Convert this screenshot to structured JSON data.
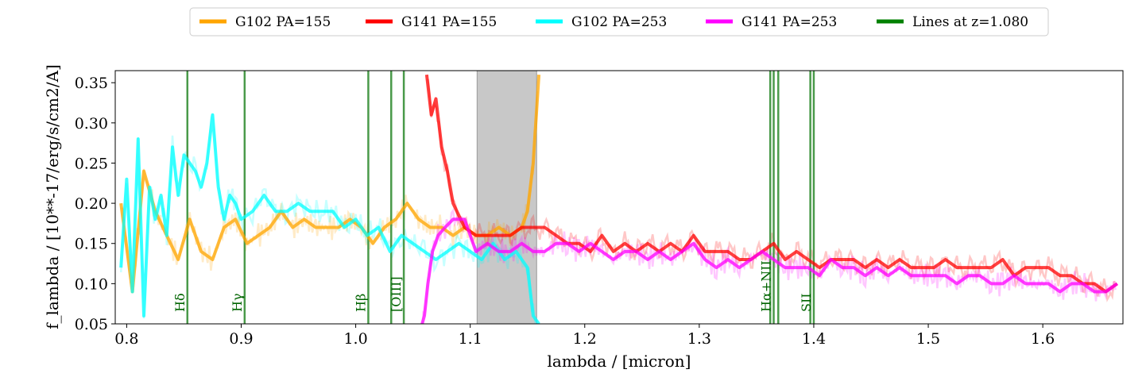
{
  "chart_data": {
    "type": "line",
    "xlabel": "lambda / [micron]",
    "ylabel": "f_lambda / [10**-17/erg/s/cm2/A]",
    "xlim": [
      0.79,
      1.67
    ],
    "ylim": [
      0.05,
      0.365
    ],
    "x_ticks": [
      0.8,
      0.9,
      1.0,
      1.1,
      1.2,
      1.3,
      1.4,
      1.5,
      1.6
    ],
    "x_tick_labels": [
      "0.8",
      "0.9",
      "1.0",
      "1.1",
      "1.2",
      "1.3",
      "1.4",
      "1.5",
      "1.6"
    ],
    "y_ticks": [
      0.05,
      0.1,
      0.15,
      0.2,
      0.25,
      0.3,
      0.35
    ],
    "y_tick_labels": [
      "0.05",
      "0.10",
      "0.15",
      "0.20",
      "0.25",
      "0.30",
      "0.35"
    ],
    "legend_position": "top-center",
    "masked_region": [
      1.106,
      1.158
    ],
    "masked_color": "#c8c8c8",
    "legend": [
      {
        "name": "G102 PA=155",
        "color": "#ffa500"
      },
      {
        "name": "G141 PA=155",
        "color": "#ff0000"
      },
      {
        "name": "G102 PA=253",
        "color": "#00ffff"
      },
      {
        "name": "G141 PA=253",
        "color": "#ff00ff"
      },
      {
        "name": "Lines at z=1.080",
        "color": "#008000"
      }
    ],
    "emission_lines": [
      {
        "x": 0.853,
        "label": "Hδ"
      },
      {
        "x": 0.903,
        "label": "Hγ"
      },
      {
        "x": 1.011,
        "label": "Hβ"
      },
      {
        "x": 1.031,
        "label": ""
      },
      {
        "x": 1.042,
        "label": "[OIII]"
      },
      {
        "x": 1.362,
        "label": ""
      },
      {
        "x": 1.365,
        "label": "Hα+NII"
      },
      {
        "x": 1.369,
        "label": ""
      },
      {
        "x": 1.397,
        "label": ""
      },
      {
        "x": 1.4,
        "label": "SII"
      }
    ],
    "series": [
      {
        "name": "G102 PA=155",
        "color": "#ffa500",
        "x": [
          0.795,
          0.805,
          0.815,
          0.825,
          0.835,
          0.845,
          0.855,
          0.865,
          0.875,
          0.885,
          0.895,
          0.905,
          0.915,
          0.925,
          0.935,
          0.945,
          0.955,
          0.965,
          0.975,
          0.985,
          0.995,
          1.005,
          1.015,
          1.025,
          1.035,
          1.045,
          1.055,
          1.065,
          1.075,
          1.085,
          1.095,
          1.105,
          1.115,
          1.125,
          1.135,
          1.145,
          1.15,
          1.155,
          1.16
        ],
        "y": [
          0.2,
          0.09,
          0.24,
          0.19,
          0.16,
          0.13,
          0.18,
          0.14,
          0.13,
          0.17,
          0.18,
          0.15,
          0.16,
          0.17,
          0.19,
          0.17,
          0.18,
          0.17,
          0.17,
          0.17,
          0.18,
          0.17,
          0.15,
          0.17,
          0.18,
          0.2,
          0.18,
          0.17,
          0.17,
          0.16,
          0.17,
          0.16,
          0.16,
          0.17,
          0.16,
          0.17,
          0.19,
          0.25,
          0.36
        ]
      },
      {
        "name": "G141 PA=155",
        "color": "#ff0000",
        "x": [
          1.062,
          1.066,
          1.07,
          1.075,
          1.08,
          1.085,
          1.095,
          1.105,
          1.115,
          1.125,
          1.135,
          1.145,
          1.155,
          1.165,
          1.175,
          1.185,
          1.195,
          1.205,
          1.215,
          1.225,
          1.235,
          1.245,
          1.255,
          1.265,
          1.275,
          1.285,
          1.295,
          1.305,
          1.315,
          1.325,
          1.335,
          1.345,
          1.355,
          1.365,
          1.375,
          1.385,
          1.395,
          1.405,
          1.415,
          1.425,
          1.435,
          1.445,
          1.455,
          1.465,
          1.475,
          1.485,
          1.495,
          1.505,
          1.515,
          1.525,
          1.535,
          1.545,
          1.555,
          1.565,
          1.575,
          1.585,
          1.595,
          1.605,
          1.615,
          1.625,
          1.635,
          1.645,
          1.655,
          1.665
        ],
        "y": [
          0.36,
          0.31,
          0.33,
          0.27,
          0.24,
          0.2,
          0.17,
          0.16,
          0.16,
          0.16,
          0.16,
          0.17,
          0.17,
          0.17,
          0.16,
          0.15,
          0.15,
          0.14,
          0.16,
          0.14,
          0.15,
          0.14,
          0.15,
          0.14,
          0.15,
          0.14,
          0.16,
          0.14,
          0.14,
          0.14,
          0.13,
          0.13,
          0.14,
          0.15,
          0.13,
          0.14,
          0.13,
          0.12,
          0.13,
          0.13,
          0.13,
          0.12,
          0.13,
          0.12,
          0.13,
          0.12,
          0.12,
          0.12,
          0.13,
          0.12,
          0.12,
          0.12,
          0.12,
          0.13,
          0.11,
          0.12,
          0.12,
          0.12,
          0.11,
          0.11,
          0.1,
          0.1,
          0.09,
          0.1
        ]
      },
      {
        "name": "G102 PA=253",
        "color": "#00ffff",
        "x": [
          0.795,
          0.8,
          0.805,
          0.81,
          0.815,
          0.82,
          0.825,
          0.83,
          0.835,
          0.84,
          0.845,
          0.85,
          0.86,
          0.865,
          0.87,
          0.875,
          0.88,
          0.885,
          0.89,
          0.895,
          0.9,
          0.91,
          0.92,
          0.93,
          0.94,
          0.95,
          0.96,
          0.97,
          0.98,
          0.99,
          1.0,
          1.01,
          1.02,
          1.03,
          1.04,
          1.05,
          1.06,
          1.07,
          1.08,
          1.09,
          1.1,
          1.11,
          1.12,
          1.13,
          1.14,
          1.15,
          1.155,
          1.16
        ],
        "y": [
          0.12,
          0.23,
          0.09,
          0.28,
          0.06,
          0.22,
          0.18,
          0.21,
          0.16,
          0.27,
          0.21,
          0.26,
          0.24,
          0.22,
          0.25,
          0.31,
          0.22,
          0.18,
          0.21,
          0.2,
          0.18,
          0.19,
          0.21,
          0.19,
          0.19,
          0.2,
          0.19,
          0.19,
          0.19,
          0.17,
          0.18,
          0.16,
          0.17,
          0.14,
          0.16,
          0.15,
          0.14,
          0.13,
          0.14,
          0.15,
          0.14,
          0.13,
          0.15,
          0.13,
          0.14,
          0.12,
          0.06,
          0.05
        ]
      },
      {
        "name": "G141 PA=253",
        "color": "#ff00ff",
        "x": [
          1.058,
          1.06,
          1.063,
          1.067,
          1.072,
          1.078,
          1.085,
          1.095,
          1.105,
          1.115,
          1.125,
          1.135,
          1.145,
          1.155,
          1.165,
          1.175,
          1.185,
          1.195,
          1.205,
          1.215,
          1.225,
          1.235,
          1.245,
          1.255,
          1.265,
          1.275,
          1.285,
          1.295,
          1.305,
          1.315,
          1.325,
          1.335,
          1.345,
          1.355,
          1.365,
          1.375,
          1.385,
          1.395,
          1.405,
          1.415,
          1.425,
          1.435,
          1.445,
          1.455,
          1.465,
          1.475,
          1.485,
          1.495,
          1.505,
          1.515,
          1.525,
          1.535,
          1.545,
          1.555,
          1.565,
          1.575,
          1.585,
          1.595,
          1.605,
          1.615,
          1.625,
          1.635,
          1.645,
          1.655,
          1.665
        ],
        "y": [
          0.05,
          0.06,
          0.1,
          0.14,
          0.16,
          0.17,
          0.18,
          0.18,
          0.14,
          0.15,
          0.14,
          0.14,
          0.15,
          0.14,
          0.14,
          0.15,
          0.15,
          0.14,
          0.15,
          0.14,
          0.13,
          0.14,
          0.14,
          0.13,
          0.14,
          0.13,
          0.14,
          0.15,
          0.13,
          0.12,
          0.13,
          0.12,
          0.13,
          0.14,
          0.13,
          0.12,
          0.12,
          0.12,
          0.11,
          0.13,
          0.12,
          0.12,
          0.11,
          0.12,
          0.11,
          0.12,
          0.11,
          0.11,
          0.11,
          0.11,
          0.1,
          0.11,
          0.11,
          0.1,
          0.1,
          0.11,
          0.1,
          0.1,
          0.1,
          0.09,
          0.1,
          0.1,
          0.09,
          0.09,
          0.1
        ]
      }
    ]
  }
}
